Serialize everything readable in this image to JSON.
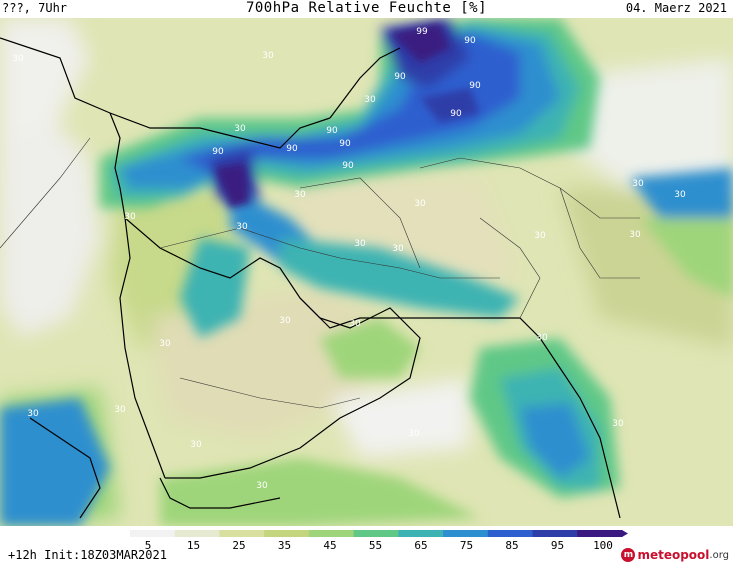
{
  "header": {
    "left": "???, 7Uhr",
    "title": "700hPa Relative Feuchte [%]",
    "date": "04. Maerz 2021"
  },
  "footer": {
    "init": "+12h Init:18Z03MAR2021"
  },
  "brand": {
    "logo_mark": "m",
    "name": "meteopool",
    "tld": ".org"
  },
  "legend": {
    "ticks": [
      "5",
      "15",
      "25",
      "35",
      "45",
      "55",
      "65",
      "75",
      "85",
      "95",
      "100"
    ],
    "colors": [
      "#f2f2f2",
      "#e6ead0",
      "#d9df9e",
      "#c3d57d",
      "#9fd57a",
      "#5fc887",
      "#3cb3b2",
      "#2d8fcf",
      "#2e5fcf",
      "#2d3ea8",
      "#3a1a80"
    ]
  },
  "map_labels": [
    {
      "text": "99"
    },
    {
      "text": "90"
    },
    {
      "text": "90"
    },
    {
      "text": "90"
    },
    {
      "text": "90"
    },
    {
      "text": "90"
    },
    {
      "text": "90"
    },
    {
      "text": "90"
    },
    {
      "text": "90"
    },
    {
      "text": "90"
    },
    {
      "text": "30"
    },
    {
      "text": "30"
    },
    {
      "text": "30"
    },
    {
      "text": "30"
    },
    {
      "text": "30"
    },
    {
      "text": "30"
    },
    {
      "text": "30"
    },
    {
      "text": "30"
    },
    {
      "text": "30"
    },
    {
      "text": "30"
    },
    {
      "text": "30"
    },
    {
      "text": "30"
    },
    {
      "text": "30"
    },
    {
      "text": "30"
    },
    {
      "text": "30"
    },
    {
      "text": "30"
    },
    {
      "text": "30"
    },
    {
      "text": "30"
    },
    {
      "text": "30"
    },
    {
      "text": "30"
    },
    {
      "text": "30"
    },
    {
      "text": "30"
    },
    {
      "text": "30"
    },
    {
      "text": "30"
    }
  ]
}
